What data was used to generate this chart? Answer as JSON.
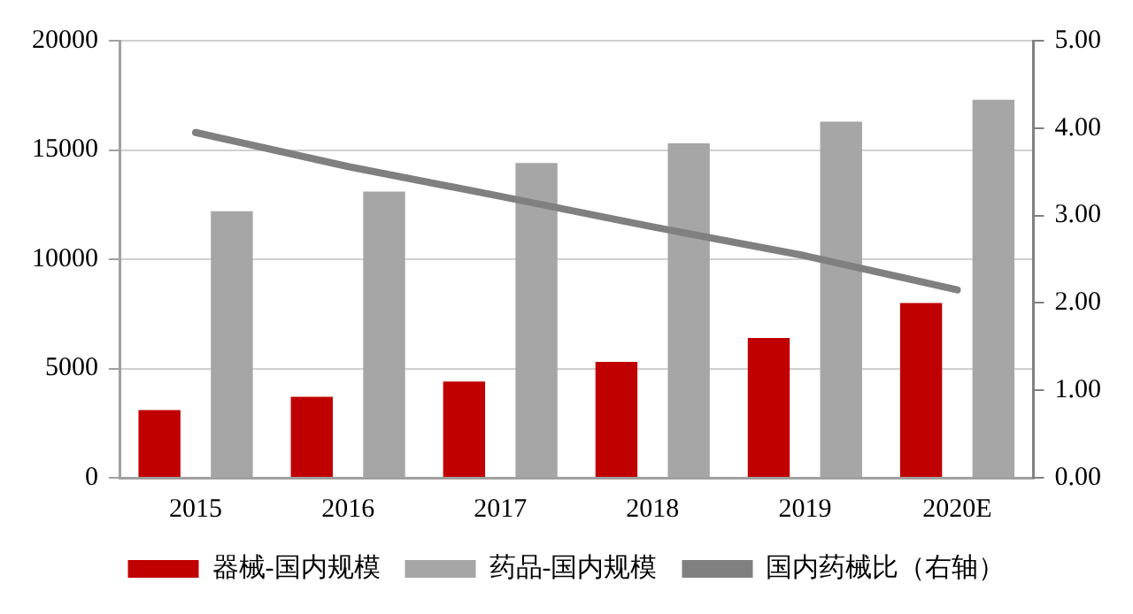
{
  "chart_data": {
    "type": "bar",
    "categories": [
      "2015",
      "2016",
      "2017",
      "2018",
      "2019",
      "2020E"
    ],
    "series": [
      {
        "name": "器械-国内规模",
        "color": "#c00000",
        "values": [
          3100,
          3700,
          4400,
          5300,
          6400,
          8000
        ]
      },
      {
        "name": "药品-国内规模",
        "color": "#a6a6a6",
        "values": [
          12200,
          13100,
          14400,
          15300,
          16300,
          17300
        ]
      },
      {
        "name": "国内药械比（右轴）",
        "type": "line",
        "axis": "y2",
        "color": "#808080",
        "values": [
          3.95,
          3.56,
          3.22,
          2.87,
          2.54,
          2.15
        ]
      }
    ],
    "ylim": [
      0,
      20000
    ],
    "yticks": [
      0,
      5000,
      10000,
      15000,
      20000
    ],
    "y2lim": [
      0,
      5
    ],
    "y2ticks": [
      {
        "value": 0,
        "label": "0.00"
      },
      {
        "value": 1,
        "label": "1.00"
      },
      {
        "value": 2,
        "label": "2.00"
      },
      {
        "value": 3,
        "label": "3.00"
      },
      {
        "value": 4,
        "label": "4.00"
      },
      {
        "value": 5,
        "label": "5.00"
      }
    ],
    "grid": "y",
    "legend": "bottom",
    "marker": "none"
  }
}
